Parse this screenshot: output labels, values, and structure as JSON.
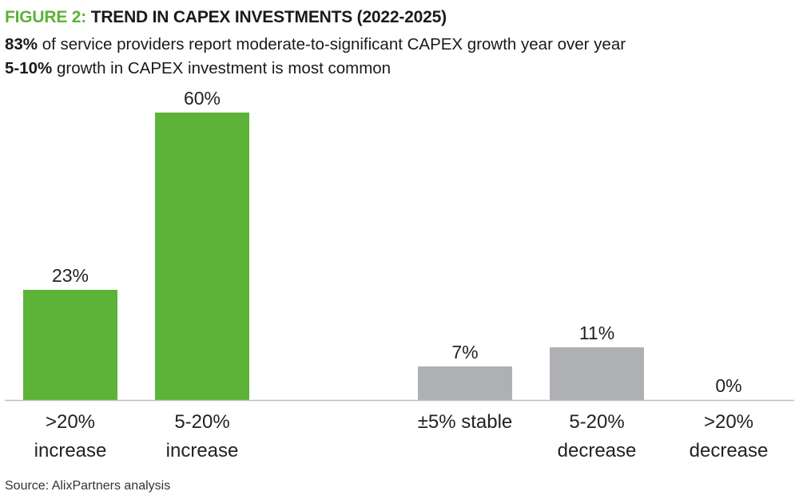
{
  "header": {
    "figure_label": "FIGURE 2:",
    "title": "TREND IN CAPEX INVESTMENTS (2022-2025)",
    "subtitle_1_bold": "83%",
    "subtitle_1_rest": " of service providers report moderate-to-significant CAPEX growth year over year",
    "subtitle_2_bold": "5-10%",
    "subtitle_2_rest": " growth in CAPEX investment is most common"
  },
  "source": "Source: AlixPartners analysis",
  "colors": {
    "increase": "#5cb338",
    "neutral": "#aeb0b3",
    "accent": "#5cb338",
    "axis": "#bfbfbf"
  },
  "chart_data": {
    "type": "bar",
    "categories": [
      [
        ">20%",
        "increase"
      ],
      [
        "5-20%",
        "increase"
      ],
      [
        "±5% stable"
      ],
      [
        "5-20%",
        "decrease"
      ],
      [
        ">20%",
        "decrease"
      ]
    ],
    "values": [
      23,
      60,
      7,
      11,
      0
    ],
    "value_labels": [
      "23%",
      "60%",
      "7%",
      "11%",
      "0%"
    ],
    "bar_colors": [
      "#5cb338",
      "#5cb338",
      "#aeb0b3",
      "#aeb0b3",
      "#aeb0b3"
    ],
    "ylim": [
      0,
      60
    ],
    "grid": false,
    "legend": "none"
  }
}
